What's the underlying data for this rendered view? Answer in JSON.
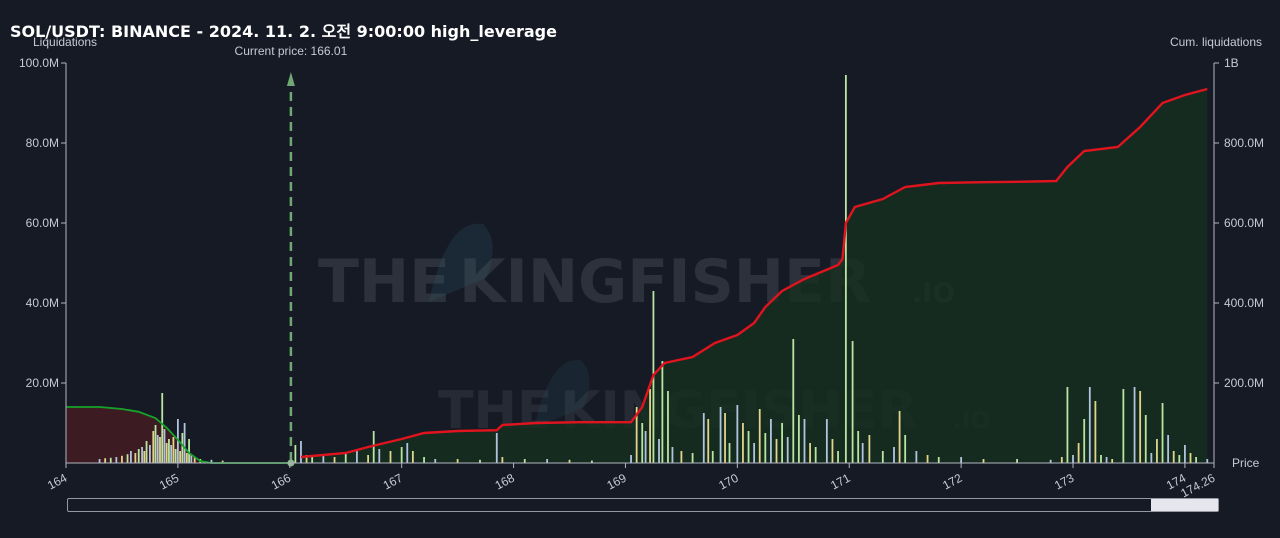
{
  "title": "SOL/USDT: BINANCE - 2024. 11. 2. 오전 9:00:00 high_leverage",
  "watermark": {
    "brand_word_1": "THE",
    "brand_word_2": "KINGFISHER",
    "brand_suffix": ".IO"
  },
  "chart_data": {
    "type": "bar",
    "current_price_label": "Current price: 166.01",
    "current_price": 166.01,
    "xlabel": "Price",
    "ylabel_left": "Liquidations",
    "ylabel_right": "Cum. liquidations",
    "xlim": [
      164,
      174.26
    ],
    "ylim_left": [
      0,
      100000000
    ],
    "ylim_right": [
      0,
      1000000000
    ],
    "x_ticks": [
      "164",
      "165",
      "166",
      "167",
      "168",
      "169",
      "170",
      "171",
      "172",
      "173",
      "174",
      "174.26"
    ],
    "x_tick_values": [
      164,
      165,
      166,
      167,
      168,
      169,
      170,
      171,
      172,
      173,
      174,
      174.26
    ],
    "y_left_ticks": [
      "20.0M",
      "40.0M",
      "60.0M",
      "80.0M",
      "100.0M"
    ],
    "y_left_tick_values": [
      20000000,
      40000000,
      60000000,
      80000000,
      100000000
    ],
    "y_right_ticks": [
      "200.0M",
      "400.0M",
      "600.0M",
      "800.0M",
      "1B"
    ],
    "y_right_tick_values": [
      200000000,
      400000000,
      600000000,
      800000000,
      1000000000
    ],
    "colors": {
      "short_cum_line": "#e0141e",
      "long_cum_line": "#16a32a",
      "bar_high": "#b8e6a0",
      "bar_mid": "#e2d48a",
      "bar_low": "#b0c4de",
      "current_price_line": "#6fa872"
    },
    "bars_long": [
      [
        164.3,
        1.0
      ],
      [
        164.35,
        1.2
      ],
      [
        164.4,
        1.3
      ],
      [
        164.45,
        1.5
      ],
      [
        164.5,
        1.8
      ],
      [
        164.55,
        2.2
      ],
      [
        164.58,
        3.0
      ],
      [
        164.62,
        2.5
      ],
      [
        164.65,
        3.5
      ],
      [
        164.68,
        4.0
      ],
      [
        164.7,
        3.0
      ],
      [
        164.72,
        5.5
      ],
      [
        164.75,
        4.5
      ],
      [
        164.78,
        8.0
      ],
      [
        164.8,
        9.5
      ],
      [
        164.82,
        7.0
      ],
      [
        164.84,
        6.5
      ],
      [
        164.86,
        17.5
      ],
      [
        164.88,
        8.5
      ],
      [
        164.9,
        5.0
      ],
      [
        164.92,
        6.0
      ],
      [
        164.94,
        4.5
      ],
      [
        164.96,
        6.5
      ],
      [
        164.98,
        3.5
      ],
      [
        165.0,
        11.0
      ],
      [
        165.02,
        3.0
      ],
      [
        165.04,
        7.5
      ],
      [
        165.06,
        10.0
      ],
      [
        165.08,
        2.5
      ],
      [
        165.1,
        6.0
      ],
      [
        165.12,
        2.0
      ],
      [
        165.15,
        1.5
      ],
      [
        165.2,
        1.0
      ],
      [
        165.3,
        0.8
      ],
      [
        165.4,
        0.6
      ]
    ],
    "bars_short": [
      [
        166.05,
        4.5
      ],
      [
        166.1,
        5.5
      ],
      [
        166.15,
        2.0
      ],
      [
        166.2,
        1.5
      ],
      [
        166.3,
        2.0
      ],
      [
        166.4,
        1.5
      ],
      [
        166.5,
        2.5
      ],
      [
        166.6,
        3.0
      ],
      [
        166.7,
        2.0
      ],
      [
        166.75,
        8.0
      ],
      [
        166.8,
        3.5
      ],
      [
        166.9,
        3.0
      ],
      [
        167.0,
        4.0
      ],
      [
        167.05,
        5.0
      ],
      [
        167.1,
        3.0
      ],
      [
        167.2,
        1.5
      ],
      [
        167.3,
        1.0
      ],
      [
        167.5,
        1.0
      ],
      [
        167.7,
        0.8
      ],
      [
        167.85,
        7.5
      ],
      [
        167.9,
        1.5
      ],
      [
        168.1,
        1.0
      ],
      [
        168.3,
        1.0
      ],
      [
        168.5,
        0.8
      ],
      [
        168.7,
        0.6
      ],
      [
        169.05,
        2.0
      ],
      [
        169.1,
        14.0
      ],
      [
        169.15,
        10.0
      ],
      [
        169.18,
        8.0
      ],
      [
        169.22,
        18.5
      ],
      [
        169.25,
        43.0
      ],
      [
        169.3,
        6.0
      ],
      [
        169.33,
        25.5
      ],
      [
        169.38,
        18.0
      ],
      [
        169.42,
        4.0
      ],
      [
        169.5,
        3.0
      ],
      [
        169.6,
        2.5
      ],
      [
        169.7,
        12.5
      ],
      [
        169.74,
        11.0
      ],
      [
        169.78,
        3.0
      ],
      [
        169.85,
        14.0
      ],
      [
        169.89,
        12.5
      ],
      [
        169.93,
        5.0
      ],
      [
        170.0,
        14.5
      ],
      [
        170.05,
        10.0
      ],
      [
        170.1,
        8.0
      ],
      [
        170.15,
        5.0
      ],
      [
        170.2,
        13.5
      ],
      [
        170.25,
        7.5
      ],
      [
        170.3,
        11.0
      ],
      [
        170.35,
        6.0
      ],
      [
        170.4,
        10.0
      ],
      [
        170.45,
        6.5
      ],
      [
        170.5,
        31.0
      ],
      [
        170.55,
        12.0
      ],
      [
        170.6,
        11.0
      ],
      [
        170.65,
        5.0
      ],
      [
        170.7,
        4.0
      ],
      [
        170.8,
        11.0
      ],
      [
        170.85,
        6.0
      ],
      [
        170.9,
        3.0
      ],
      [
        170.97,
        97.0
      ],
      [
        171.03,
        30.5
      ],
      [
        171.08,
        8.0
      ],
      [
        171.12,
        5.0
      ],
      [
        171.18,
        7.0
      ],
      [
        171.3,
        3.0
      ],
      [
        171.4,
        4.0
      ],
      [
        171.45,
        13.0
      ],
      [
        171.5,
        7.0
      ],
      [
        171.6,
        3.0
      ],
      [
        171.7,
        2.0
      ],
      [
        171.8,
        1.5
      ],
      [
        172.0,
        1.5
      ],
      [
        172.2,
        1.0
      ],
      [
        172.5,
        1.0
      ],
      [
        172.8,
        0.8
      ],
      [
        172.9,
        1.5
      ],
      [
        172.95,
        19.0
      ],
      [
        173.0,
        2.0
      ],
      [
        173.05,
        5.0
      ],
      [
        173.1,
        11.0
      ],
      [
        173.15,
        19.0
      ],
      [
        173.2,
        15.5
      ],
      [
        173.25,
        2.0
      ],
      [
        173.3,
        1.5
      ],
      [
        173.35,
        1.0
      ],
      [
        173.45,
        18.5
      ],
      [
        173.55,
        19.0
      ],
      [
        173.6,
        18.0
      ],
      [
        173.65,
        12.0
      ],
      [
        173.7,
        2.5
      ],
      [
        173.75,
        6.0
      ],
      [
        173.8,
        15.0
      ],
      [
        173.85,
        7.0
      ],
      [
        173.9,
        3.0
      ],
      [
        173.95,
        2.0
      ],
      [
        174.0,
        4.5
      ],
      [
        174.05,
        2.5
      ],
      [
        174.1,
        1.5
      ],
      [
        174.2,
        1.0
      ]
    ],
    "cum_long": [
      [
        164.0,
        140
      ],
      [
        164.3,
        140
      ],
      [
        164.5,
        135
      ],
      [
        164.65,
        128
      ],
      [
        164.8,
        112
      ],
      [
        164.9,
        88
      ],
      [
        165.0,
        58
      ],
      [
        165.1,
        25
      ],
      [
        165.2,
        5
      ],
      [
        165.3,
        0
      ],
      [
        166.01,
        0
      ]
    ],
    "cum_short": [
      [
        166.1,
        15
      ],
      [
        166.5,
        25
      ],
      [
        166.7,
        40
      ],
      [
        167.0,
        60
      ],
      [
        167.2,
        75
      ],
      [
        167.5,
        80
      ],
      [
        167.85,
        82
      ],
      [
        167.9,
        95
      ],
      [
        168.2,
        100
      ],
      [
        168.6,
        102
      ],
      [
        169.05,
        102
      ],
      [
        169.15,
        140
      ],
      [
        169.25,
        220
      ],
      [
        169.35,
        250
      ],
      [
        169.6,
        265
      ],
      [
        169.8,
        300
      ],
      [
        170.0,
        320
      ],
      [
        170.15,
        350
      ],
      [
        170.25,
        390
      ],
      [
        170.4,
        430
      ],
      [
        170.6,
        460
      ],
      [
        170.9,
        495
      ],
      [
        170.94,
        510
      ],
      [
        170.97,
        600
      ],
      [
        171.05,
        640
      ],
      [
        171.3,
        660
      ],
      [
        171.5,
        690
      ],
      [
        171.8,
        700
      ],
      [
        172.2,
        702
      ],
      [
        172.5,
        703
      ],
      [
        172.85,
        705
      ],
      [
        172.95,
        740
      ],
      [
        173.1,
        780
      ],
      [
        173.4,
        790
      ],
      [
        173.6,
        840
      ],
      [
        173.8,
        900
      ],
      [
        174.0,
        920
      ],
      [
        174.2,
        935
      ]
    ]
  }
}
